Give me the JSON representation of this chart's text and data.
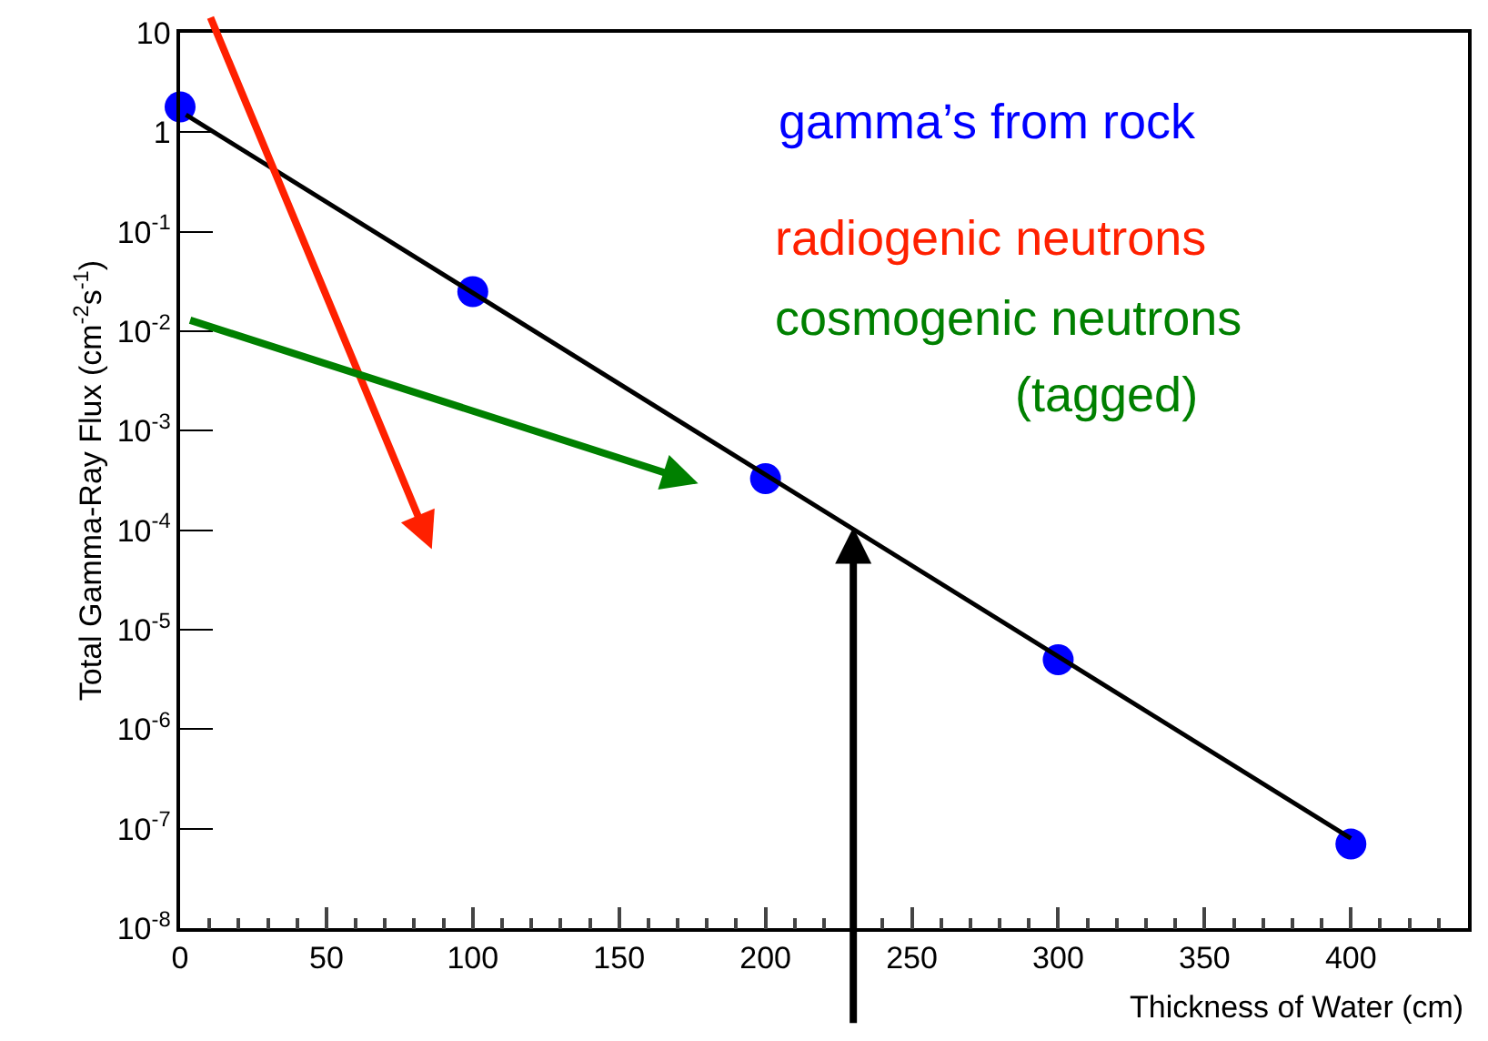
{
  "chart_data": {
    "type": "scatter",
    "xlabel": "Thickness of Water (cm)",
    "ylabel": "Total Gamma-Ray Flux (cm$^{-2}$s$^{-1}$)",
    "x": [
      0,
      100,
      200,
      300,
      400
    ],
    "series": [
      {
        "color": "#0000ff",
        "marker": "circle",
        "values": [
          1.8,
          0.025,
          0.00033,
          5e-06,
          7e-08
        ]
      },
      {
        "type": "line",
        "color": "#000000",
        "marker": "none",
        "x": [
          2,
          400
        ],
        "values": [
          1.5,
          8e-08
        ]
      }
    ],
    "log": "y",
    "xlim": [
      0,
      440
    ],
    "xticks": [
      0,
      50,
      100,
      150,
      200,
      250,
      300,
      350,
      400
    ],
    "ylim": [
      1e-08,
      10
    ],
    "yticks": [
      {
        "value": 1e-08,
        "label": "10$^{-8}$"
      },
      {
        "value": 1e-07,
        "label": "10$^{-7}$"
      },
      {
        "value": 1e-06,
        "label": "10$^{-6}$"
      },
      {
        "value": 1e-05,
        "label": "10$^{-5}$"
      },
      {
        "value": 0.0001,
        "label": "10$^{-4}$"
      },
      {
        "value": 0.001,
        "label": "10$^{-3}$"
      },
      {
        "value": 0.01,
        "label": "10$^{-2}$"
      },
      {
        "value": 0.1,
        "label": "10$^{-1}$"
      },
      {
        "value": 1,
        "label": "1"
      },
      {
        "value": 10,
        "label": "10"
      }
    ],
    "annotations": [
      "gamma’s from rock",
      "radiogenic neutrons",
      "cosmogenic neutrons",
      "(tagged)"
    ]
  }
}
